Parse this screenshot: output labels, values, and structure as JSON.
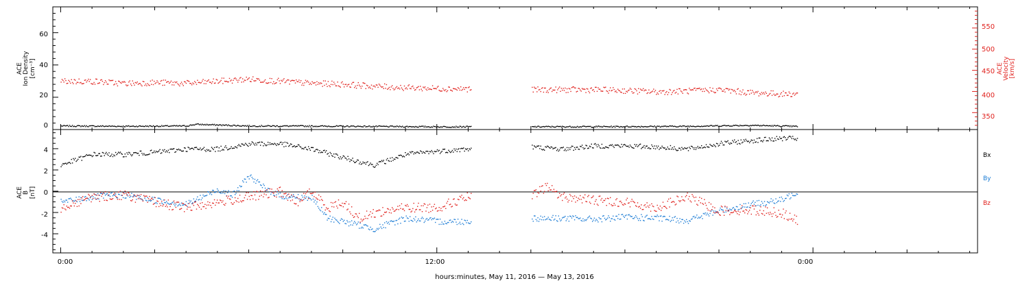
{
  "chart_data": [
    {
      "type": "scatter",
      "panel": "top",
      "ylabel_left": [
        "ACE",
        "Ion Density",
        "[cm⁻³]"
      ],
      "ylabel_right": [
        "ACE",
        "Velocity",
        "[km/s]"
      ],
      "ylim_left": [
        0,
        76
      ],
      "ylim_right": [
        310,
        600
      ],
      "yticks_left": [
        "0",
        "20",
        "40",
        "60"
      ],
      "yticks_right": [
        "350",
        "400",
        "450",
        "500",
        "550"
      ],
      "data_gaps_hours": [
        [
          13.1,
          15.0
        ]
      ],
      "series": [
        {
          "name": "Ion Density",
          "axis": "left",
          "color": "#000000",
          "x_hours": [
            0,
            2,
            4,
            4.3,
            6,
            8,
            10,
            12,
            13,
            15,
            18,
            20,
            22,
            23.5
          ],
          "y": [
            2.5,
            2.3,
            2.5,
            3.5,
            2.5,
            2.4,
            2.2,
            2.0,
            2.0,
            2.0,
            2.1,
            2.3,
            2.9,
            2.2
          ]
        },
        {
          "name": "Velocity",
          "axis": "right",
          "color": "#e0201c",
          "x_hours": [
            0,
            1,
            2,
            3,
            4,
            5,
            6,
            7,
            8,
            9,
            10,
            11,
            12,
            13,
            15,
            16,
            17,
            18,
            19,
            20,
            21,
            22,
            23,
            23.5
          ],
          "y": [
            425,
            425,
            420,
            422,
            420,
            425,
            430,
            425,
            420,
            418,
            413,
            410,
            408,
            407,
            405,
            405,
            405,
            403,
            400,
            402,
            405,
            398,
            395,
            395
          ]
        }
      ]
    },
    {
      "type": "scatter",
      "panel": "bottom",
      "ylabel": [
        "ACE",
        "B",
        "[nT]"
      ],
      "ylim": [
        -5.8,
        5.8
      ],
      "yticks": [
        "-4",
        "-2",
        "0",
        "2",
        "4"
      ],
      "data_gaps_hours": [
        [
          13.1,
          15.0
        ]
      ],
      "series": [
        {
          "name": "Bx",
          "sub": "x",
          "color": "#000000",
          "x_hours": [
            0,
            1,
            2,
            3,
            4,
            5,
            6,
            7,
            8,
            9,
            10,
            11,
            12,
            13,
            15,
            16,
            17,
            18,
            19,
            20,
            21,
            22,
            23,
            23.5
          ],
          "y": [
            2.5,
            3.5,
            3.5,
            3.7,
            4.0,
            4.0,
            4.5,
            4.5,
            4.0,
            3.2,
            2.5,
            3.5,
            3.8,
            4.0,
            4.2,
            4.0,
            4.3,
            4.3,
            4.2,
            4.0,
            4.5,
            4.8,
            5.0,
            5.0
          ]
        },
        {
          "name": "By",
          "sub": "y",
          "color": "#1a7bd4",
          "x_hours": [
            0,
            1,
            2,
            3,
            4,
            5,
            5.5,
            6,
            6.5,
            7,
            8,
            8.5,
            9,
            10,
            11,
            12,
            13,
            15,
            16,
            17,
            18,
            19,
            20,
            21,
            22,
            23,
            23.5
          ],
          "y": [
            -1.0,
            -0.5,
            -0.3,
            -0.8,
            -1.2,
            0.2,
            -0.3,
            1.5,
            0.3,
            -0.4,
            -0.6,
            -2.5,
            -2.8,
            -3.5,
            -2.5,
            -2.8,
            -2.8,
            -2.5,
            -2.5,
            -2.6,
            -2.4,
            -2.5,
            -2.7,
            -1.8,
            -1.2,
            -0.8,
            0.0
          ]
        },
        {
          "name": "Bz",
          "sub": "z",
          "color": "#e0201c",
          "x_hours": [
            0,
            1,
            2,
            3,
            4,
            5,
            6,
            7,
            7.5,
            8,
            8.5,
            9,
            9.5,
            10,
            11,
            12,
            13,
            15,
            15.5,
            16,
            17,
            18,
            19,
            20,
            21,
            22,
            23,
            23.5
          ],
          "y": [
            -1.5,
            -0.5,
            -0.3,
            -1.0,
            -1.5,
            -1.0,
            -0.5,
            0.0,
            -1.0,
            0.0,
            -1.5,
            -1.0,
            -2.5,
            -2.0,
            -1.5,
            -1.5,
            -0.5,
            -0.5,
            0.5,
            -0.5,
            -0.8,
            -1.0,
            -1.5,
            -0.5,
            -1.8,
            -1.7,
            -2.0,
            -2.8
          ]
        }
      ]
    }
  ],
  "x_axis": {
    "xlim_hours": [
      -0.25,
      29.25
    ],
    "major_ticks": [
      {
        "hour": 0,
        "label": "0:00"
      },
      {
        "hour": 12,
        "label": "12:00"
      },
      {
        "hour": 24,
        "label": "0:00"
      }
    ],
    "xlabel": "hours:minutes, May 11, 2016 — May 13, 2016"
  },
  "colors": {
    "black": "#000000",
    "red": "#e0201c",
    "blue": "#1a7bd4"
  }
}
